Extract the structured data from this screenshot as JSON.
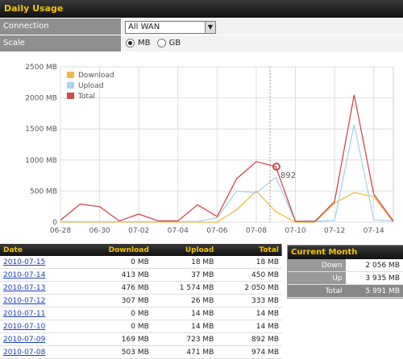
{
  "header": {
    "title": "Daily Usage"
  },
  "controls": {
    "connection": {
      "label": "Connection",
      "value": "All WAN"
    },
    "scale": {
      "label": "Scale",
      "options": [
        "MB",
        "GB"
      ],
      "selected": "MB"
    }
  },
  "chart_data": {
    "type": "line",
    "categories": [
      "06-28",
      null,
      "06-30",
      null,
      "07-02",
      null,
      "07-04",
      null,
      "07-06",
      null,
      "07-08",
      null,
      "07-10",
      null,
      "07-12",
      null,
      "07-14",
      null
    ],
    "series": [
      {
        "name": "Download",
        "color": "#f4b942",
        "values": [
          0,
          0,
          0,
          0,
          0,
          0,
          0,
          0,
          0,
          200,
          503,
          169,
          0,
          0,
          307,
          476,
          413,
          0
        ]
      },
      {
        "name": "Upload",
        "color": "#a9d3f0",
        "values": [
          10,
          10,
          10,
          10,
          10,
          10,
          10,
          10,
          70,
          500,
          471,
          723,
          14,
          14,
          26,
          1574,
          37,
          18
        ]
      },
      {
        "name": "Total",
        "color": "#d04a4a",
        "values": [
          30,
          290,
          250,
          20,
          130,
          20,
          20,
          280,
          90,
          700,
          974,
          892,
          14,
          14,
          333,
          2050,
          450,
          18
        ]
      }
    ],
    "ylim": [
      0,
      2500
    ],
    "yticks": [
      0,
      {
        "value": 500,
        "label": "500 MB"
      },
      {
        "value": 1000,
        "label": "1000 MB"
      },
      {
        "value": 1500,
        "label": "1500 MB"
      },
      {
        "value": 2000,
        "label": "2000 MB"
      },
      {
        "value": 2500,
        "label": "2500 MB"
      }
    ],
    "grid": true,
    "legend": "upper left",
    "annotations": [
      "892"
    ]
  },
  "table": {
    "columns": [
      "Date",
      "Download",
      "Upload",
      "Total"
    ],
    "rows": [
      [
        "2010-07-15",
        "0 MB",
        "18 MB",
        "18 MB"
      ],
      [
        "2010-07-14",
        "413 MB",
        "37 MB",
        "450 MB"
      ],
      [
        "2010-07-13",
        "476 MB",
        "1 574 MB",
        "2 050 MB"
      ],
      [
        "2010-07-12",
        "307 MB",
        "26 MB",
        "333 MB"
      ],
      [
        "2010-07-11",
        "0 MB",
        "14 MB",
        "14 MB"
      ],
      [
        "2010-07-10",
        "0 MB",
        "14 MB",
        "14 MB"
      ],
      [
        "2010-07-09",
        "169 MB",
        "723 MB",
        "892 MB"
      ],
      [
        "2010-07-08",
        "503 MB",
        "471 MB",
        "974 MB"
      ]
    ]
  },
  "current_month": {
    "title": "Current Month",
    "rows": [
      [
        "Down",
        "2 056 MB"
      ],
      [
        "Up",
        "3 935 MB"
      ],
      [
        "Total",
        "5 991 MB"
      ]
    ]
  }
}
